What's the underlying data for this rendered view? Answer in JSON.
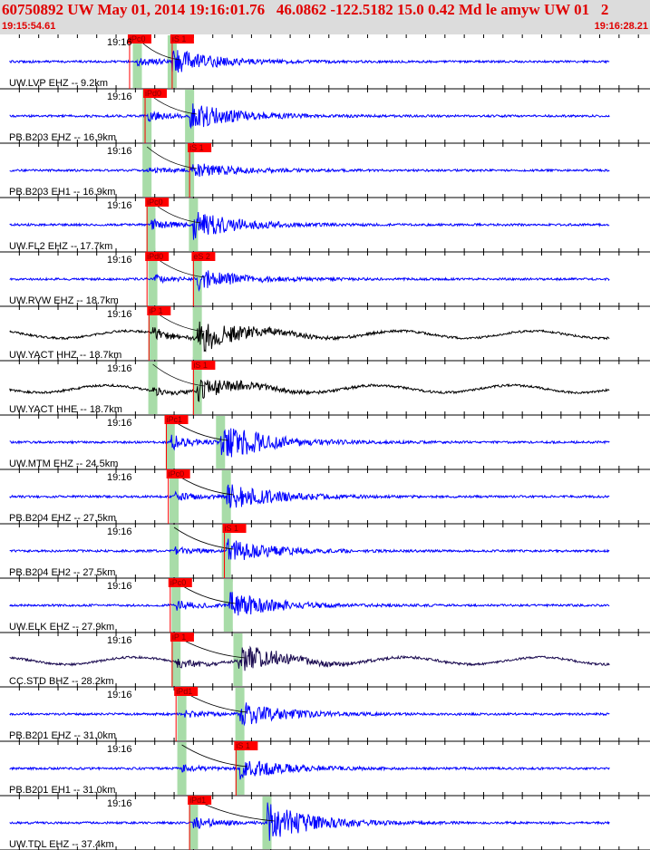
{
  "header": {
    "title": "60750892 UW May 01, 2014 19:16:01.76   46.0862 -122.5182 15.0 0.42 Md le amyw UW 01   2",
    "start_time": "19:15:54.61",
    "end_time": "19:16:28.21"
  },
  "colors": {
    "trace_blue": "#0000ff",
    "trace_black": "#000000",
    "trace_dark": "#1a0a50",
    "pick_red": "#ff0000",
    "pick_window_green": "#a8dca8",
    "header_bg": "#dcdcdc",
    "text_red": "#e00000"
  },
  "time_window": {
    "start_s": 0,
    "end_s": 33.6
  },
  "traces": [
    {
      "station": "UW.LVP EHZ -- 9.2km",
      "time_label": "19:16",
      "color": "blue",
      "amp": 0.6,
      "picks": [
        {
          "label": "iPc0",
          "t": 6.7
        },
        {
          "label": "iS 1",
          "t": 8.9
        }
      ],
      "p_window": 7.1,
      "s_window": 8.9
    },
    {
      "station": "PB.B203 EHZ -- 16.9km",
      "time_label": "19:16",
      "color": "blue",
      "amp": 0.7,
      "picks": [
        {
          "label": "iPd0",
          "t": 7.5
        }
      ],
      "p_window": 7.6,
      "s_window": 9.8
    },
    {
      "station": "PB.B203 EH1 -- 16.9km",
      "time_label": "19:16",
      "color": "blue",
      "amp": 0.4,
      "picks": [
        {
          "label": "iS 1",
          "t": 9.8
        }
      ],
      "p_window": 7.6,
      "s_window": 9.8
    },
    {
      "station": "UW.FL2 EHZ -- 17.7km",
      "time_label": "19:16",
      "color": "blue",
      "amp": 0.7,
      "picks": [
        {
          "label": "iPc0",
          "t": 7.6
        }
      ],
      "p_window": 7.8,
      "s_window": 10.0
    },
    {
      "station": "UW.RVW EHZ -- 18.7km",
      "time_label": "19:16",
      "color": "blue",
      "amp": 0.5,
      "picks": [
        {
          "label": "iPd0",
          "t": 7.6
        },
        {
          "label": "eS 2",
          "t": 10.0
        }
      ],
      "p_window": 7.9,
      "s_window": 10.2
    },
    {
      "station": "UW.YACT HHZ -- 18.7km",
      "time_label": "19:16",
      "color": "black",
      "amp": 0.8,
      "picks": [
        {
          "label": "iP 1",
          "t": 7.7
        }
      ],
      "p_window": 7.9,
      "s_window": 10.2
    },
    {
      "station": "UW.YACT HHE -- 18.7km",
      "time_label": "19:16",
      "color": "black",
      "amp": 0.5,
      "picks": [
        {
          "label": "iS 1",
          "t": 10.0
        }
      ],
      "p_window": 7.9,
      "s_window": 10.2
    },
    {
      "station": "UW.MTM EHZ -- 24.5km",
      "time_label": "19:16",
      "color": "blue",
      "amp": 1.0,
      "picks": [
        {
          "label": "iPc1",
          "t": 8.6
        }
      ],
      "p_window": 8.8,
      "s_window": 11.4
    },
    {
      "station": "PB.B204 EHZ -- 27.5km",
      "time_label": "19:16",
      "color": "blue",
      "amp": 0.7,
      "picks": [
        {
          "label": "iPc0",
          "t": 8.7
        }
      ],
      "p_window": 9.0,
      "s_window": 11.7
    },
    {
      "station": "PB.B204 EH2 -- 27.5km",
      "time_label": "19:16",
      "color": "blue",
      "amp": 0.6,
      "picks": [
        {
          "label": "iS 1",
          "t": 11.6
        }
      ],
      "p_window": 9.0,
      "s_window": 11.7
    },
    {
      "station": "UW.ELK EHZ -- 27.9km",
      "time_label": "19:16",
      "color": "blue",
      "amp": 0.7,
      "picks": [
        {
          "label": "iPc0",
          "t": 8.8
        }
      ],
      "p_window": 9.1,
      "s_window": 11.8
    },
    {
      "station": "CC.STD BHZ -- 28.2km",
      "time_label": "19:16",
      "color": "dark",
      "amp": 0.7,
      "picks": [
        {
          "label": "iP 1",
          "t": 8.9
        }
      ],
      "p_window": 9.1,
      "s_window": 12.3
    },
    {
      "station": "PB.B201 EHZ -- 31.0km",
      "time_label": "19:16",
      "color": "blue",
      "amp": 0.6,
      "picks": [
        {
          "label": "iPd1",
          "t": 9.1
        }
      ],
      "p_window": 9.4,
      "s_window": 12.4
    },
    {
      "station": "PB.B201 EH1 -- 31.0km",
      "time_label": "19:16",
      "color": "blue",
      "amp": 0.5,
      "picks": [
        {
          "label": "iS 1",
          "t": 12.2
        }
      ],
      "p_window": 9.4,
      "s_window": 12.4
    },
    {
      "station": "UW.TDL EHZ -- 37.4km",
      "time_label": "19:16",
      "color": "blue",
      "amp": 1.0,
      "picks": [
        {
          "label": "iPd1",
          "t": 9.8
        }
      ],
      "p_window": 10.0,
      "s_window": 13.8
    }
  ]
}
